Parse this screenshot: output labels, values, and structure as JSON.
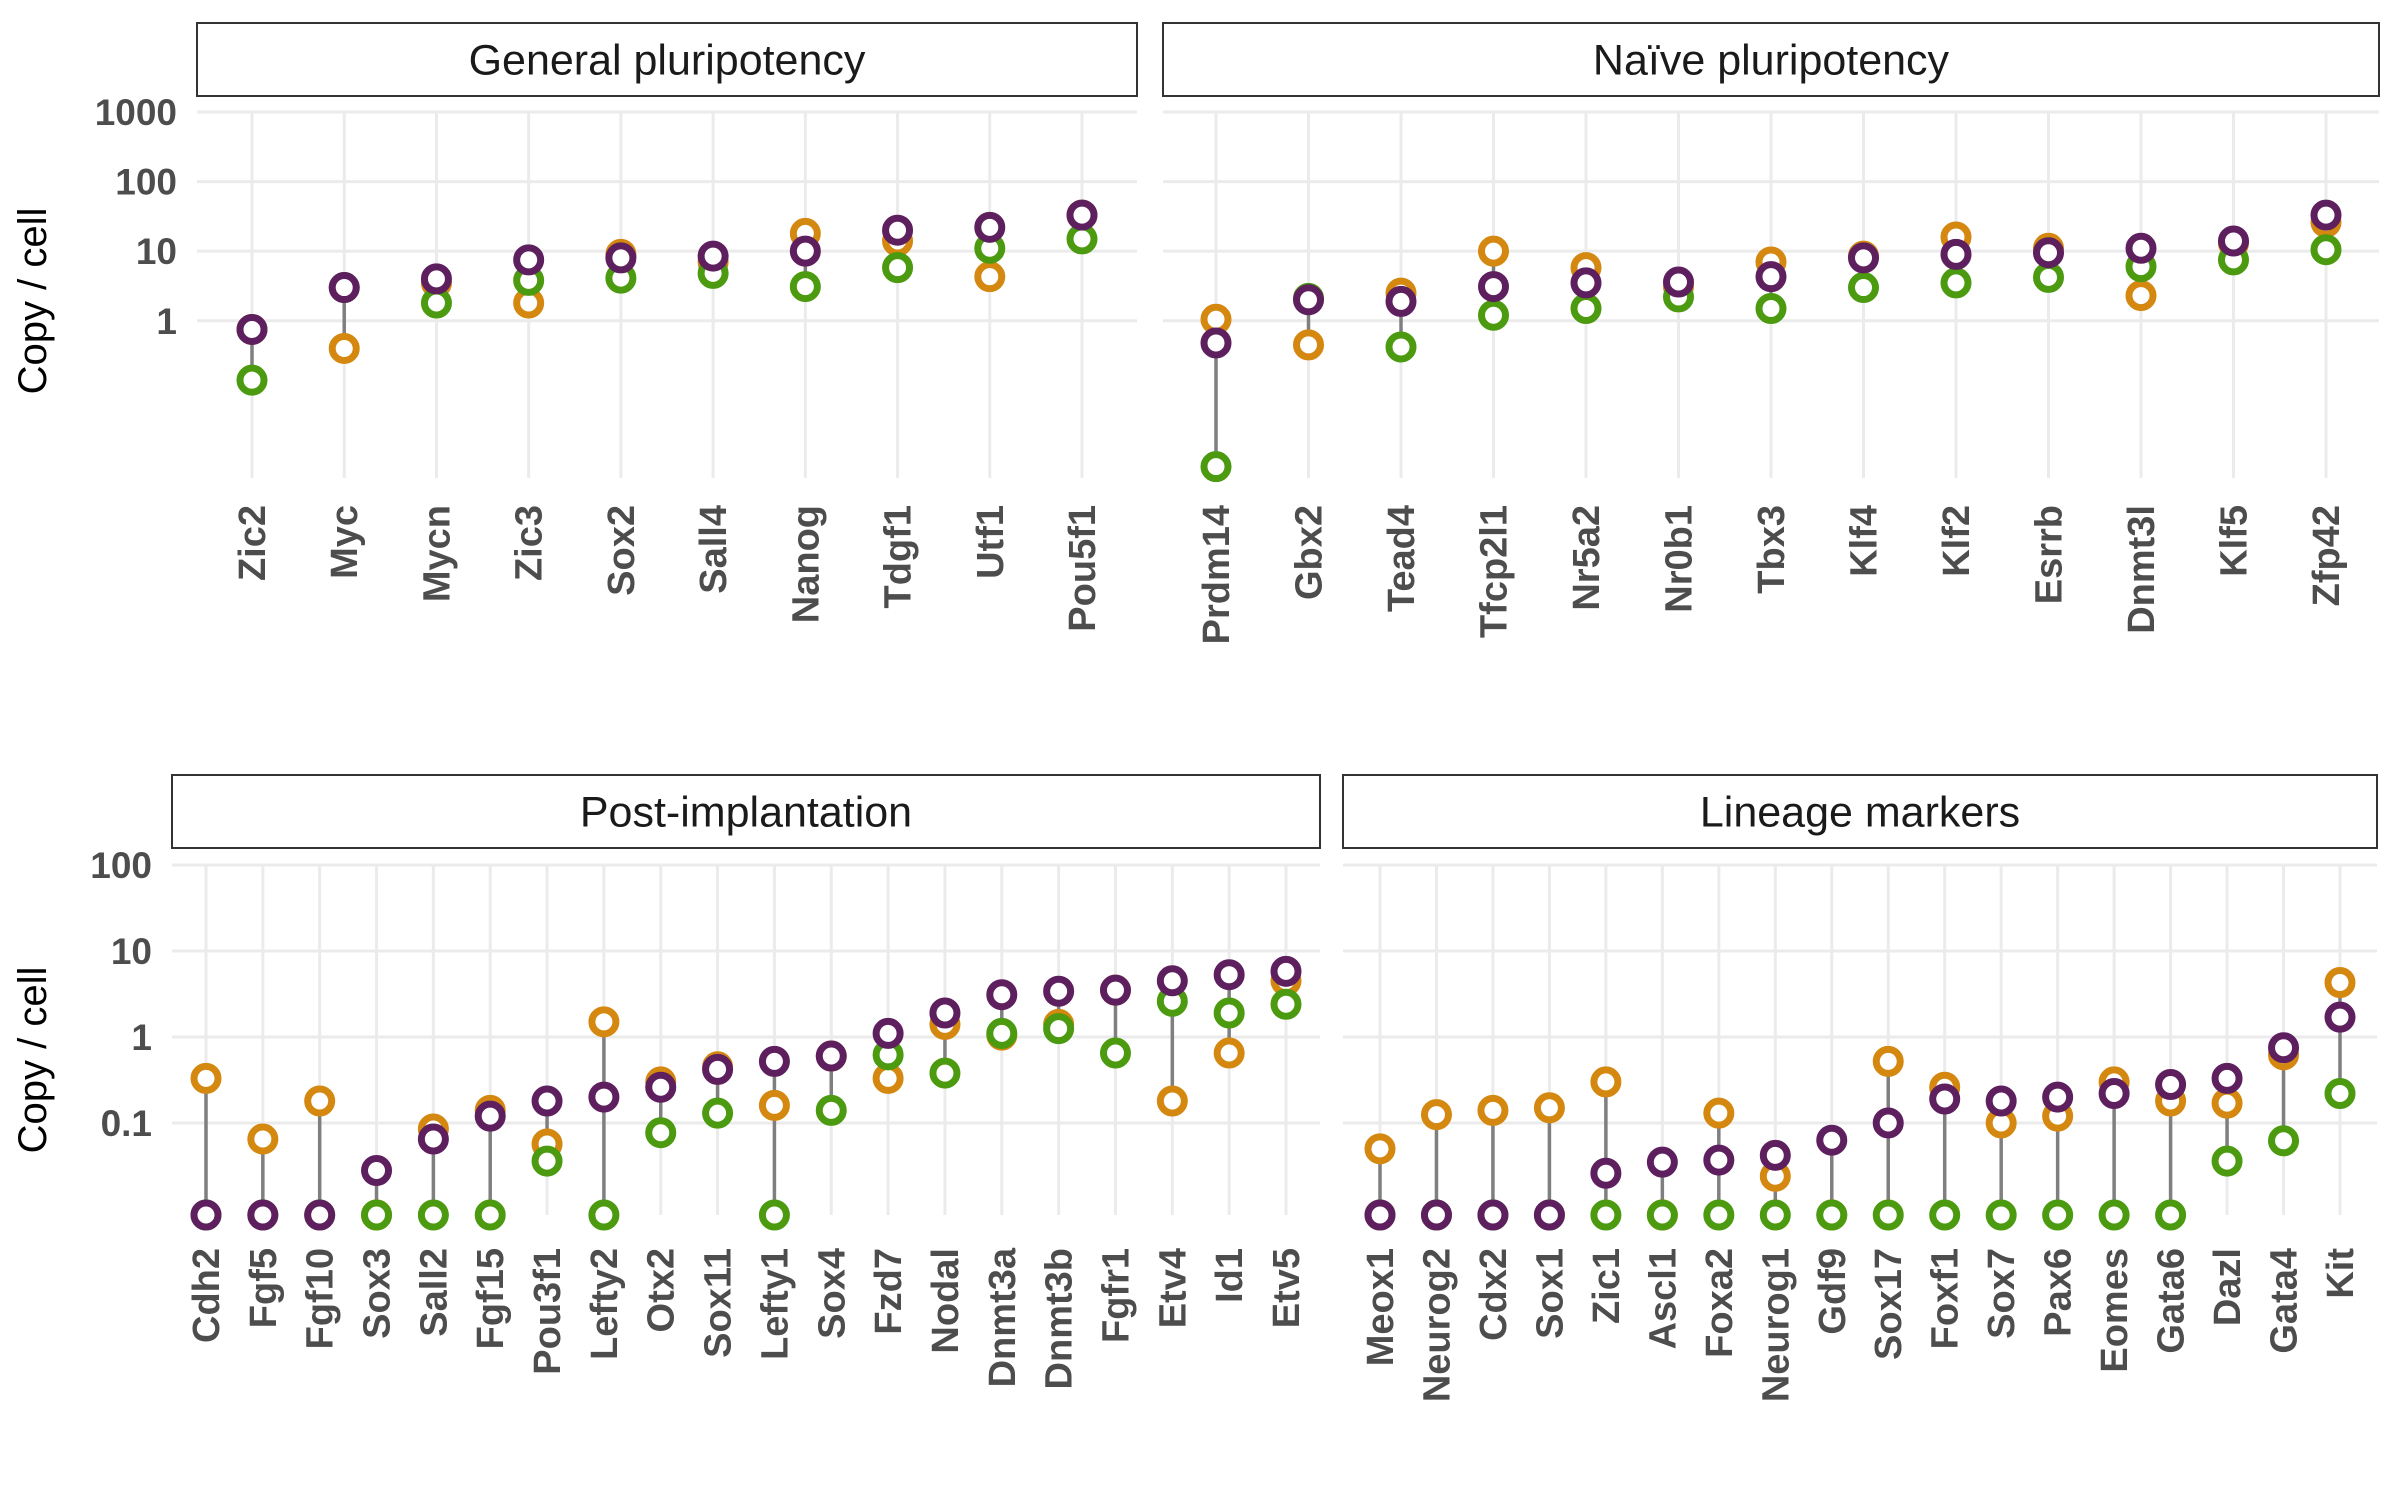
{
  "colors": {
    "orange": "#d4880f",
    "purple": "#5e1f5e",
    "green": "#4b9a0f",
    "segment": "#7f7f7f",
    "grid": "#ebebeb"
  },
  "chart_data": [
    {
      "type": "dot-range",
      "title": "General pluripotency",
      "ylabel": "Copy / cell",
      "yscale": "log10",
      "ylim": [
        0.0055,
        1000
      ],
      "yticks": [
        1,
        10,
        100,
        1000
      ],
      "ytick_labels": [
        "1",
        "10",
        "100",
        "1000"
      ],
      "categories": [
        "Zic2",
        "Myc",
        "Mycn",
        "Zic3",
        "Sox2",
        "Sall4",
        "Nanog",
        "Tdgf1",
        "Utf1",
        "Pou5f1"
      ],
      "series": [
        {
          "color": "orange",
          "values": [
            0.75,
            0.4,
            3.5,
            1.8,
            9,
            7,
            18,
            14,
            4.3,
            33
          ]
        },
        {
          "color": "purple",
          "values": [
            0.75,
            3,
            4,
            7.5,
            8,
            8.5,
            10,
            20,
            22,
            33
          ]
        },
        {
          "color": "green",
          "values": [
            0.14,
            3,
            1.8,
            3.8,
            4.1,
            4.8,
            3.1,
            5.8,
            11,
            15
          ]
        }
      ]
    },
    {
      "type": "dot-range",
      "title": "Naïve pluripotency",
      "yscale": "log10",
      "ylim": [
        0.0055,
        1000
      ],
      "yticks": [
        1,
        10,
        100,
        1000
      ],
      "categories": [
        "Prdm14",
        "Gbx2",
        "Tead4",
        "Tfcp2l1",
        "Nr5a2",
        "Nr0b1",
        "Tbx3",
        "Klf4",
        "Klf2",
        "Esrrb",
        "Dnmt3l",
        "Klf5",
        "Zfp42"
      ],
      "series": [
        {
          "color": "orange",
          "values": [
            1.05,
            0.45,
            2.5,
            10,
            5.8,
            3.1,
            7,
            8.5,
            16,
            11,
            2.3,
            13,
            26
          ]
        },
        {
          "color": "purple",
          "values": [
            0.48,
            2,
            1.9,
            3.1,
            3.5,
            3.6,
            4.3,
            8,
            9,
            9.5,
            11,
            14,
            33
          ]
        },
        {
          "color": "green",
          "values": [
            0.008,
            2.1,
            0.42,
            1.2,
            1.5,
            2.2,
            1.5,
            3,
            3.5,
            4.2,
            6,
            7.5,
            10.5
          ]
        }
      ]
    },
    {
      "type": "dot-range",
      "title": "Post-implantation",
      "ylabel": "Copy / cell",
      "yscale": "log10",
      "ylim": [
        0.0085,
        100
      ],
      "yticks": [
        0.1,
        1,
        10,
        100
      ],
      "ytick_labels": [
        "0.1",
        "1",
        "10",
        "100"
      ],
      "categories": [
        "Cdh2",
        "Fgf5",
        "Fgf10",
        "Sox3",
        "Sall2",
        "Fgf15",
        "Pou3f1",
        "Lefty2",
        "Otx2",
        "Sox11",
        "Lefty1",
        "Sox4",
        "Fzd7",
        "Nodal",
        "Dnmt3a",
        "Dnmt3b",
        "Fgfr1",
        "Etv4",
        "Id1",
        "Etv5"
      ],
      "series": [
        {
          "color": "orange",
          "values": [
            0.33,
            0.065,
            0.18,
            0.0085,
            0.085,
            0.14,
            0.057,
            1.5,
            0.3,
            0.45,
            0.16,
            0.6,
            0.33,
            1.4,
            1.05,
            1.4,
            3.5,
            0.18,
            0.65,
            4.5
          ]
        },
        {
          "color": "purple",
          "values": [
            0.0085,
            0.0085,
            0.0085,
            0.028,
            0.065,
            0.12,
            0.18,
            0.2,
            0.26,
            0.42,
            0.52,
            0.6,
            1.1,
            1.9,
            3.1,
            3.4,
            3.5,
            4.5,
            5.3,
            5.8
          ]
        },
        {
          "color": "green",
          "values": [
            0.0085,
            0.0085,
            0.0085,
            0.0085,
            0.0085,
            0.0085,
            0.036,
            0.0085,
            0.077,
            0.13,
            0.0085,
            0.14,
            0.62,
            0.38,
            1.1,
            1.25,
            0.65,
            2.6,
            1.9,
            2.4
          ]
        }
      ]
    },
    {
      "type": "dot-range",
      "title": "Lineage markers",
      "yscale": "log10",
      "ylim": [
        0.0085,
        100
      ],
      "yticks": [
        0.1,
        1,
        10,
        100
      ],
      "categories": [
        "Meox1",
        "Neurog2",
        "Cdx2",
        "Sox1",
        "Zic1",
        "Ascl1",
        "Foxa2",
        "Neurog1",
        "Gdf9",
        "Sox17",
        "Foxf1",
        "Sox7",
        "Pax6",
        "Eomes",
        "Gata6",
        "Dazl",
        "Gata4",
        "Kit"
      ],
      "series": [
        {
          "color": "orange",
          "values": [
            0.05,
            0.125,
            0.14,
            0.15,
            0.3,
            0.0085,
            0.13,
            0.024,
            0.0085,
            0.52,
            0.26,
            0.1,
            0.12,
            0.3,
            0.18,
            0.17,
            0.62,
            4.3
          ]
        },
        {
          "color": "purple",
          "values": [
            0.0085,
            0.0085,
            0.0085,
            0.0085,
            0.026,
            0.035,
            0.037,
            0.042,
            0.063,
            0.1,
            0.19,
            0.18,
            0.2,
            0.22,
            0.28,
            0.33,
            0.75,
            1.7
          ]
        },
        {
          "color": "green",
          "values": [
            0.0085,
            0.0085,
            0.0085,
            0.0085,
            0.0085,
            0.0085,
            0.0085,
            0.0085,
            0.0085,
            0.0085,
            0.0085,
            0.0085,
            0.0085,
            0.0085,
            0.0085,
            0.036,
            0.062,
            0.22
          ]
        }
      ]
    }
  ]
}
